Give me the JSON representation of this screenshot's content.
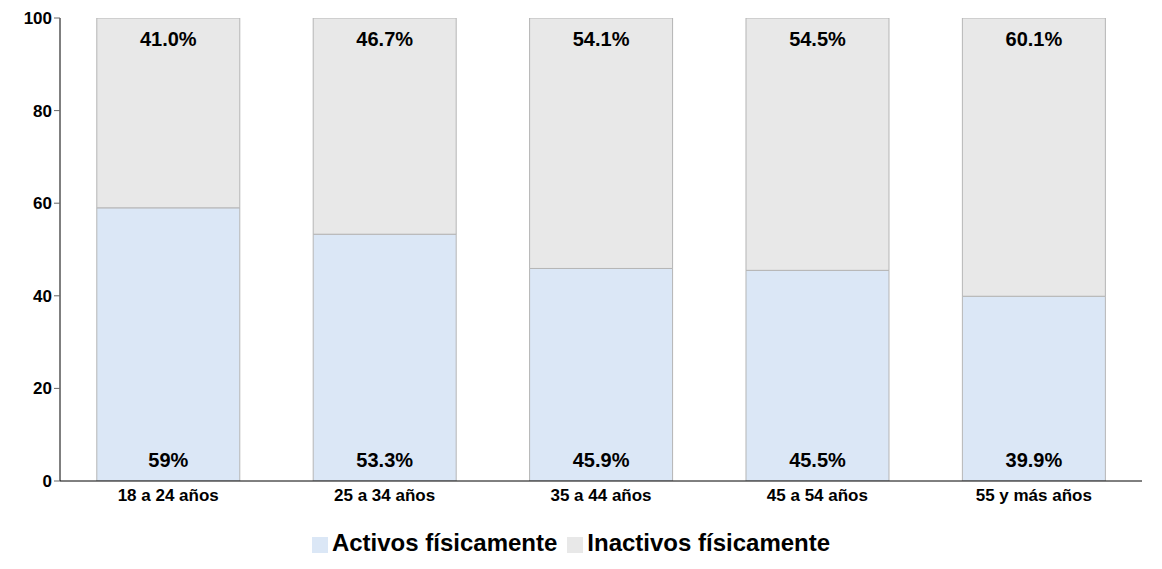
{
  "chart_data": {
    "type": "bar",
    "stacked": true,
    "categories": [
      "18 a 24 años",
      "25 a 34 años",
      "35 a 44 años",
      "45 a 54 años",
      "55 y más años"
    ],
    "series": [
      {
        "name": "Activos físicamente",
        "color": "#dbe7f6",
        "values": [
          59,
          53.3,
          45.9,
          45.5,
          39.9
        ],
        "value_labels": [
          "59%",
          "53.3%",
          "45.9%",
          "45.5%",
          "39.9%"
        ]
      },
      {
        "name": "Inactivos físicamente",
        "color": "#e8e8e8",
        "values": [
          41.0,
          46.7,
          54.1,
          54.5,
          60.1
        ],
        "value_labels": [
          "41.0%",
          "46.7%",
          "54.1%",
          "54.5%",
          "60.1%"
        ]
      }
    ],
    "ylim": [
      0,
      100
    ],
    "yticks": [
      0,
      20,
      40,
      60,
      80,
      100
    ],
    "grid": false,
    "legend": "bottom",
    "data_labels": true
  }
}
